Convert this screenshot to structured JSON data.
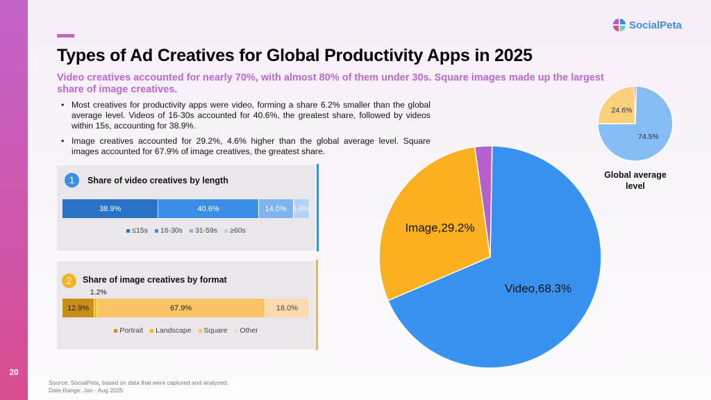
{
  "page_number": "20",
  "logo": {
    "text": "SocialPeta",
    "icon": "socialpeta-logo-icon"
  },
  "title": "Types of Ad Creatives for Global Productivity Apps in 2025",
  "subtitle": "Video creatives accounted for nearly 70%, with almost 80% of them under 30s. Square images made up the largest share of image creatives.",
  "bullets": [
    "Most creatives for productivity apps were video, forming a share 6.2% smaller than the global average level. Videos of 16-30s accounted for 40.6%, the greatest share, followed by videos within 15s, accounting for 38.9%.",
    "Image creatives accounted for 29.2%, 4.6% higher than the global average level. Square images accounted for 67.9% of image creatives, the greatest share."
  ],
  "footer": {
    "source": "Source: SocialPeta, based on data that were captured and analyzed.",
    "date_range": "Date Range: Jan - Aug 2025"
  },
  "chart_data": [
    {
      "id": "video-length",
      "type": "bar",
      "orientation": "horizontal-stacked-100",
      "badge": "1",
      "title": "Share of video creatives by length",
      "categories": [
        "≤15s",
        "16-30s",
        "31-59s",
        "≥60s"
      ],
      "values": [
        38.9,
        40.6,
        14.0,
        6.6
      ],
      "labels": [
        "38.9%",
        "40.6%",
        "14.0%",
        "6.6%"
      ],
      "colors": [
        "#2a72c8",
        "#3a8ee6",
        "#7db3f0",
        "#b4d2f6"
      ],
      "label_colors": [
        "#ffffff",
        "#ffffff",
        "#ffffff",
        "#ffffff"
      ],
      "legend": "bottom-center"
    },
    {
      "id": "image-format",
      "type": "bar",
      "orientation": "horizontal-stacked-100",
      "badge": "2",
      "title": "Share of image creatives by format",
      "categories": [
        "Portrait",
        "Landscape",
        "Square",
        "Other"
      ],
      "values": [
        12.9,
        1.2,
        67.9,
        18.0
      ],
      "labels": [
        "12.9%",
        "1.2%",
        "67.9%",
        "18.0%"
      ],
      "colors": [
        "#c98e18",
        "#f4b425",
        "#fcc466",
        "#fddab0"
      ],
      "label_colors": [
        "#222222",
        "#222222",
        "#222222",
        "#444444"
      ],
      "legend": "bottom-center"
    },
    {
      "id": "creative-type-productivity",
      "type": "pie",
      "title": "",
      "categories": [
        "Video",
        "Image",
        "Other"
      ],
      "values": [
        68.3,
        29.2,
        2.5
      ],
      "labels": [
        "Video,68.3%",
        "Image,29.2%",
        ""
      ],
      "colors": [
        "#3a92f0",
        "#fbb020",
        "#b660d0"
      ]
    },
    {
      "id": "creative-type-global",
      "type": "pie",
      "title": "Global average level",
      "categories": [
        "Video",
        "Image",
        "Other"
      ],
      "values": [
        74.5,
        24.6,
        0.9
      ],
      "labels": [
        "74.5%",
        "24.6%",
        ""
      ],
      "colors": [
        "#86bdf4",
        "#fbd07a",
        "#c77ad4"
      ]
    }
  ]
}
